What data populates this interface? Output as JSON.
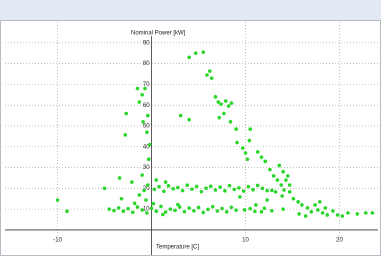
{
  "chart_data": {
    "type": "scatter",
    "y_label": "Nominal Power [kW]",
    "x_label": "Temperature [C]",
    "color": "#2ad62a",
    "xlim": [
      -15.6,
      24.1
    ],
    "ylim": [
      -3.4,
      100
    ],
    "xticks": [
      -10,
      10,
      20
    ],
    "yticks": [
      10,
      20,
      30,
      40,
      50,
      60,
      70,
      80,
      90
    ],
    "grid": true,
    "x": [
      -10,
      -9,
      4.0,
      4.7,
      5.5,
      5.9,
      6.2,
      6.4,
      6.8,
      7.1,
      7.4,
      7.9,
      8.2,
      8.5,
      7.7,
      7.2,
      8.4,
      9.0,
      10.5,
      9.1,
      9.7,
      10.4,
      10,
      10.2,
      11.3,
      11.7,
      12.1,
      12.6,
      13,
      13.4,
      13.8,
      14.1,
      14.5,
      14.7,
      13.2,
      13.9,
      15.1,
      15.6,
      16,
      16.6,
      17,
      17.7,
      18.2,
      18.7,
      19.3,
      19.8,
      20.9,
      21.9,
      22.8,
      23.5,
      17.4,
      17.9,
      15.7,
      16.4,
      20.3,
      18.5,
      14.7,
      13.6,
      14,
      14.3,
      12.8,
      12.3,
      11.1,
      11.7,
      9.9,
      9.4,
      -0.5,
      -1.3,
      -1.5,
      -0.7,
      -1,
      -0.4,
      -0.9,
      -0.2,
      -0.3,
      -2.7,
      -2.8,
      -1,
      -0.4,
      -0.6,
      -1.3,
      -2.1,
      -3.4,
      3.1,
      4,
      0.3,
      0.8,
      1.3,
      1.8,
      2.3,
      2.8,
      3.3,
      3.8,
      4.3,
      4.8,
      5.3,
      5.8,
      6.3,
      6.8,
      7.3,
      7.8,
      8.3,
      8.8,
      9.3,
      9.8,
      10.3,
      10.8,
      11.3,
      11.8,
      12.3,
      0.5,
      1.5,
      -0.8,
      -4.5,
      -4,
      -3.5,
      -3,
      -2.5,
      -2,
      -1.5,
      -1,
      -0.5,
      0,
      0.5,
      1,
      1.5,
      2,
      2.5,
      3,
      3.5,
      4,
      4.5,
      5,
      5.5,
      6,
      6.5,
      7,
      7.5,
      8,
      8.5,
      9,
      10.5,
      11,
      12,
      12.8,
      14,
      0.2,
      1.2,
      2.8,
      -1.8,
      -3.2,
      -5
    ],
    "values": [
      14.4,
      9,
      83,
      85,
      85.5,
      74.5,
      76.4,
      73,
      64,
      61.5,
      60.5,
      62,
      59.6,
      61,
      56,
      54,
      52,
      48.5,
      48.5,
      42,
      39.4,
      43,
      37,
      34,
      37.5,
      35,
      33,
      29,
      26,
      24,
      21.6,
      19.2,
      26,
      18.3,
      18.3,
      16.3,
      15,
      13.5,
      12,
      10.6,
      8.7,
      9.6,
      8.2,
      7.2,
      9.1,
      7.2,
      8.2,
      7.7,
      8.2,
      8.2,
      12,
      13.5,
      7.7,
      6.7,
      6.7,
      10.6,
      21.6,
      31,
      28,
      24,
      19,
      14.4,
      12,
      8.7,
      9.6,
      15.9,
      47,
      61.5,
      68,
      68,
      65,
      55,
      52,
      41,
      34,
      56,
      45.7,
      26.4,
      21.6,
      14.4,
      16.8,
      23,
      25,
      55,
      53,
      19.5,
      20.8,
      18.6,
      21.2,
      19.8,
      20.4,
      18.9,
      21.5,
      19.6,
      20.9,
      18.4,
      20.1,
      21,
      19.2,
      20.6,
      18.8,
      21.3,
      19.5,
      20.2,
      18.7,
      20.8,
      19.3,
      21.4,
      20,
      18.9,
      24,
      23,
      19,
      10,
      9.3,
      10.6,
      9,
      10.2,
      8.5,
      11,
      9.6,
      8.2,
      10.4,
      9,
      11.3,
      8.6,
      10,
      9.4,
      11,
      8.8,
      10.5,
      9.2,
      10.8,
      8.4,
      9.9,
      11.2,
      9.1,
      10.3,
      8.7,
      10.9,
      9.5,
      10.2,
      8.9,
      10.4,
      9.2,
      10,
      12.6,
      7.4,
      12.2,
      12.8,
      15,
      20
    ]
  }
}
